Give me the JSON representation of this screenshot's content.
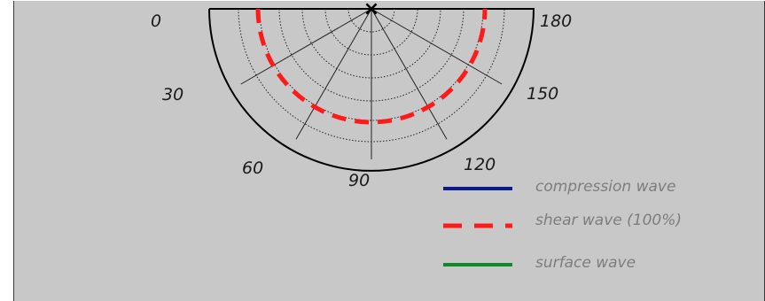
{
  "diagram": {
    "angle_labels": {
      "a0": "0",
      "a30": "30",
      "a60": "60",
      "a90": "90",
      "a120": "120",
      "a150": "150",
      "a180": "180"
    },
    "source_marker": "×",
    "legend": [
      {
        "label": "compression wave",
        "color": "#0b1b8f",
        "style": "solid"
      },
      {
        "label": "shear wave (100%)",
        "color": "#ff1a1a",
        "style": "dashed"
      },
      {
        "label": "surface wave",
        "color": "#0f8a2a",
        "style": "solid"
      }
    ],
    "colors": {
      "panel_background": "#c8c8c8",
      "panel_border": "#3a3a3a",
      "outer_arc": "#000000",
      "grid": "#222222",
      "shear_wave": "#ff1a1a"
    }
  }
}
